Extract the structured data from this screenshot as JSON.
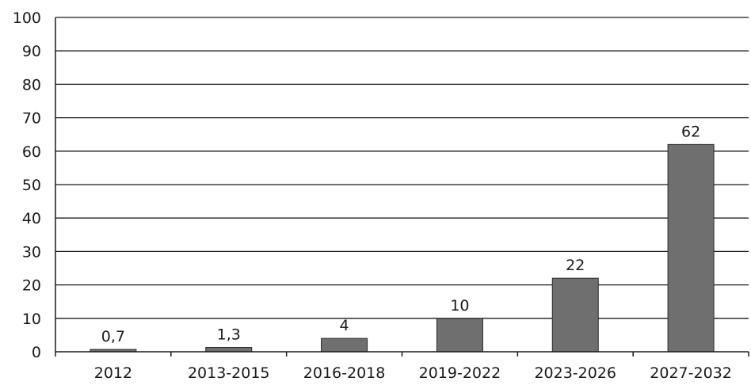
{
  "chart_data": {
    "type": "bar",
    "categories": [
      "2012",
      "2013-2015",
      "2016-2018",
      "2019-2022",
      "2023-2026",
      "2027-2032"
    ],
    "values": [
      0.7,
      1.3,
      4,
      10,
      22,
      62
    ],
    "data_labels": [
      "0,7",
      "1,3",
      "4",
      "10",
      "22",
      "62"
    ],
    "title": "",
    "xlabel": "",
    "ylabel": "",
    "ylim": [
      0,
      100
    ],
    "yticks": [
      0,
      10,
      20,
      30,
      40,
      50,
      60,
      70,
      80,
      90,
      100
    ],
    "grid": true,
    "legend": "none",
    "bar_color": "#6f6f6f"
  }
}
